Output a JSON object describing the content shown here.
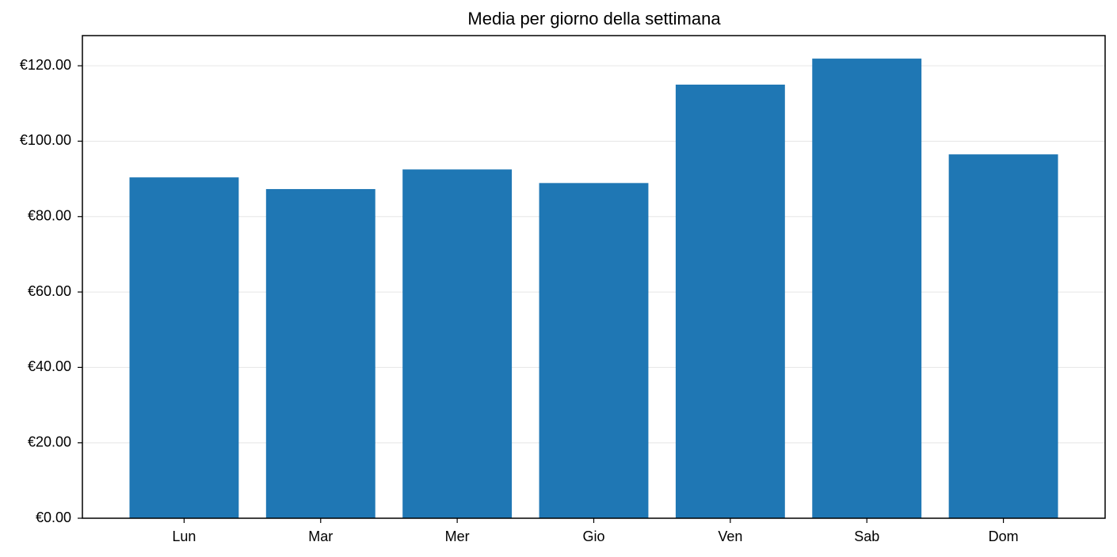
{
  "chart_data": {
    "type": "bar",
    "title": "Media per giorno della settimana",
    "categories": [
      "Lun",
      "Mar",
      "Mer",
      "Gio",
      "Ven",
      "Sab",
      "Dom"
    ],
    "values": [
      90.4,
      87.3,
      92.5,
      88.9,
      115.0,
      121.9,
      96.5
    ],
    "color": "#1f77b4",
    "ylim": [
      0,
      128
    ],
    "yticks": [
      {
        "value": 0,
        "label": "€0.00"
      },
      {
        "value": 20,
        "label": "€20.00"
      },
      {
        "value": 40,
        "label": "€40.00"
      },
      {
        "value": 60,
        "label": "€60.00"
      },
      {
        "value": 80,
        "label": "€80.00"
      },
      {
        "value": 100,
        "label": "€100.00"
      },
      {
        "value": 120,
        "label": "€120.00"
      }
    ],
    "grid": true
  }
}
